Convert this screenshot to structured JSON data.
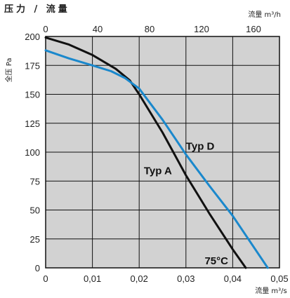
{
  "chart_data": {
    "type": "line",
    "title": "压力 / 流量",
    "x_bottom": {
      "label": "流量 m³/s",
      "ticks": [
        "0",
        "0,01",
        "0,02",
        "0,03",
        "0,04",
        "0,05"
      ],
      "range": [
        0,
        0.05
      ]
    },
    "x_top": {
      "label": "流量 m³/h",
      "ticks": [
        "0",
        "40",
        "80",
        "120",
        "160"
      ],
      "range": [
        0,
        180
      ]
    },
    "y": {
      "label": "全压 Pa",
      "ticks": [
        "0",
        "25",
        "50",
        "75",
        "100",
        "125",
        "150",
        "175",
        "200"
      ],
      "range": [
        0,
        200
      ]
    },
    "grid": true,
    "series": [
      {
        "name": "Typ A",
        "color": "#111111",
        "x": [
          0,
          0.005,
          0.01,
          0.015,
          0.018,
          0.02,
          0.025,
          0.03,
          0.035,
          0.04,
          0.0428
        ],
        "y": [
          199,
          193,
          184,
          172,
          162,
          150,
          117,
          80,
          47,
          16,
          0
        ]
      },
      {
        "name": "Typ D",
        "color": "#1a88cc",
        "x": [
          0,
          0.005,
          0.01,
          0.014,
          0.017,
          0.02,
          0.025,
          0.03,
          0.035,
          0.04,
          0.0475
        ],
        "y": [
          188,
          181,
          175,
          170,
          164,
          155,
          128,
          98,
          71,
          45,
          0
        ]
      }
    ],
    "annotations": [
      {
        "text": "Typ D",
        "x": 0.03,
        "y": 102
      },
      {
        "text": "Typ A",
        "x": 0.021,
        "y": 81
      },
      {
        "text": "75°C",
        "x": 0.034,
        "y": 3
      }
    ]
  }
}
